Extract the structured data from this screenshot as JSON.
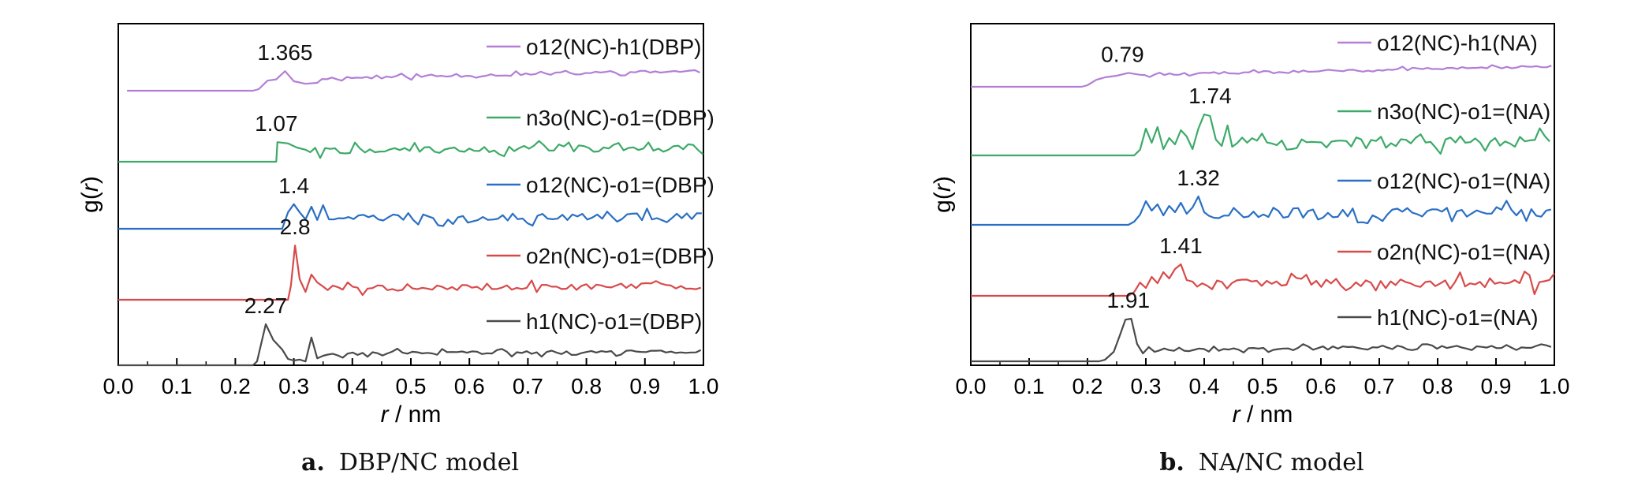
{
  "chart_data": [
    {
      "type": "line",
      "panel_letter": "a.",
      "caption": "DBP/NC model",
      "xlabel_italic": "r",
      "xlabel_unit": " / nm",
      "ylabel_prefix": "g(",
      "ylabel_italic": "r",
      "ylabel_suffix": ")",
      "xlim": [
        0.0,
        1.0
      ],
      "xticks": [
        "0.0",
        "0.1",
        "0.2",
        "0.3",
        "0.4",
        "0.5",
        "0.6",
        "0.7",
        "0.8",
        "0.9",
        "1.0"
      ],
      "y_ticks_shown": false,
      "series": [
        {
          "name": "o12(NC)-h1(DBP)",
          "color": "#b37fd6",
          "peak_label": "1.365",
          "peak_r": 0.285,
          "onset": 0.23,
          "x_start": 0.015,
          "noise": 0.045,
          "trend": 0.14,
          "seed": 11,
          "points": [
            [
              0.24,
              0.05
            ],
            [
              0.255,
              0.32
            ],
            [
              0.27,
              0.36
            ],
            [
              0.285,
              0.62
            ],
            [
              0.3,
              0.3
            ],
            [
              0.32,
              0.22
            ],
            [
              0.34,
              0.25
            ]
          ]
        },
        {
          "name": "n3o(NC)-o1=(DBP)",
          "color": "#3caa68",
          "peak_label": "1.07",
          "peak_r": 0.27,
          "onset": 0.27,
          "x_start": 0.0,
          "noise": 0.11,
          "trend": 0.05,
          "seed": 22,
          "points": [
            [
              0.272,
              0.62
            ],
            [
              0.29,
              0.58
            ],
            [
              0.305,
              0.45
            ],
            [
              0.32,
              0.38
            ]
          ]
        },
        {
          "name": "o12(NC)-o1=(DBP)",
          "color": "#2a6fc4",
          "peak_label": "1.4",
          "peak_r": 0.3,
          "onset": 0.28,
          "x_start": 0.0,
          "noise": 0.12,
          "trend": 0.02,
          "seed": 33,
          "points": [
            [
              0.29,
              0.52
            ],
            [
              0.3,
              0.78
            ],
            [
              0.31,
              0.52
            ],
            [
              0.32,
              0.3
            ],
            [
              0.33,
              0.7
            ],
            [
              0.34,
              0.28
            ],
            [
              0.35,
              0.75
            ],
            [
              0.36,
              0.3
            ]
          ]
        },
        {
          "name": "o2n(NC)-o1=(DBP)",
          "color": "#d84a4a",
          "peak_label": "2.8",
          "peak_r": 0.302,
          "onset": 0.29,
          "x_start": 0.0,
          "noise": 0.1,
          "trend": 0.04,
          "seed": 44,
          "points": [
            [
              0.295,
              0.45
            ],
            [
              0.302,
              1.72
            ],
            [
              0.31,
              0.65
            ],
            [
              0.32,
              0.25
            ],
            [
              0.33,
              0.8
            ],
            [
              0.34,
              0.55
            ],
            [
              0.35,
              0.42
            ]
          ]
        },
        {
          "name": "h1(NC)-o1=(DBP)",
          "color": "#4a4a4a",
          "peak_label": "2.27",
          "peak_r": 0.252,
          "onset": 0.23,
          "x_start": 0.0,
          "noise": 0.06,
          "trend": 0.05,
          "seed": 55,
          "points": [
            [
              0.237,
              0.12
            ],
            [
              0.252,
              1.3
            ],
            [
              0.265,
              0.8
            ],
            [
              0.28,
              0.5
            ],
            [
              0.29,
              0.2
            ],
            [
              0.3,
              0.15
            ],
            [
              0.31,
              0.18
            ],
            [
              0.32,
              0.12
            ],
            [
              0.33,
              0.88
            ],
            [
              0.34,
              0.22
            ],
            [
              0.35,
              0.3
            ]
          ]
        }
      ]
    },
    {
      "type": "line",
      "panel_letter": "b.",
      "caption": "NA/NC model",
      "xlabel_italic": "r",
      "xlabel_unit": " / nm",
      "ylabel_prefix": "g(",
      "ylabel_italic": "r",
      "ylabel_suffix": ")",
      "xlim": [
        0.0,
        1.0
      ],
      "xticks": [
        "0.0",
        "0.1",
        "0.2",
        "0.3",
        "0.4",
        "0.5",
        "0.6",
        "0.7",
        "0.8",
        "0.9",
        "1.0"
      ],
      "y_ticks_shown": false,
      "series": [
        {
          "name": "o12(NC)-h1(NA)",
          "color": "#b37fd6",
          "peak_label": "0.79",
          "peak_r": 0.26,
          "onset": 0.19,
          "x_start": 0.0,
          "noise": 0.035,
          "trend": 0.15,
          "seed": 66,
          "points": [
            [
              0.2,
              0.05
            ],
            [
              0.215,
              0.22
            ],
            [
              0.23,
              0.3
            ],
            [
              0.25,
              0.35
            ],
            [
              0.27,
              0.44
            ],
            [
              0.29,
              0.38
            ]
          ]
        },
        {
          "name": "n3o(NC)-o1=(NA)",
          "color": "#3caa68",
          "peak_label": "1.74",
          "peak_r": 0.41,
          "onset": 0.28,
          "x_start": 0.0,
          "noise": 0.2,
          "trend": 0.04,
          "seed": 77,
          "points": [
            [
              0.29,
              0.18
            ],
            [
              0.3,
              0.85
            ],
            [
              0.31,
              0.4
            ],
            [
              0.32,
              0.9
            ],
            [
              0.33,
              0.2
            ],
            [
              0.34,
              0.55
            ],
            [
              0.35,
              0.35
            ],
            [
              0.36,
              0.8
            ],
            [
              0.37,
              0.6
            ],
            [
              0.38,
              0.2
            ],
            [
              0.39,
              0.85
            ],
            [
              0.4,
              1.3
            ],
            [
              0.41,
              1.25
            ],
            [
              0.42,
              0.5
            ],
            [
              0.43,
              0.3
            ],
            [
              0.44,
              0.95
            ]
          ]
        },
        {
          "name": "o12(NC)-o1=(NA)",
          "color": "#2a6fc4",
          "peak_label": "1.32",
          "peak_r": 0.39,
          "onset": 0.27,
          "x_start": 0.0,
          "noise": 0.16,
          "trend": 0.03,
          "seed": 88,
          "points": [
            [
              0.28,
              0.1
            ],
            [
              0.29,
              0.32
            ],
            [
              0.3,
              0.75
            ],
            [
              0.31,
              0.45
            ],
            [
              0.32,
              0.65
            ],
            [
              0.33,
              0.3
            ],
            [
              0.34,
              0.6
            ],
            [
              0.35,
              0.4
            ],
            [
              0.36,
              0.7
            ],
            [
              0.37,
              0.35
            ],
            [
              0.38,
              0.55
            ],
            [
              0.39,
              0.9
            ],
            [
              0.4,
              0.4
            ]
          ]
        },
        {
          "name": "o2n(NC)-o1=(NA)",
          "color": "#d84a4a",
          "peak_label": "1.41",
          "peak_r": 0.36,
          "onset": 0.27,
          "x_start": 0.0,
          "noise": 0.16,
          "trend": 0.04,
          "seed": 99,
          "points": [
            [
              0.28,
              0.12
            ],
            [
              0.29,
              0.42
            ],
            [
              0.3,
              0.25
            ],
            [
              0.31,
              0.6
            ],
            [
              0.32,
              0.4
            ],
            [
              0.33,
              0.75
            ],
            [
              0.34,
              0.55
            ],
            [
              0.35,
              0.85
            ],
            [
              0.36,
              1.0
            ],
            [
              0.37,
              0.5
            ],
            [
              0.38,
              0.45
            ]
          ]
        },
        {
          "name": "h1(NC)-o1=(NA)",
          "color": "#4a4a4a",
          "peak_label": "1.91",
          "peak_r": 0.27,
          "onset": 0.22,
          "x_start": 0.0,
          "noise": 0.06,
          "trend": 0.07,
          "seed": 111,
          "points": [
            [
              0.23,
              0.05
            ],
            [
              0.245,
              0.3
            ],
            [
              0.255,
              0.8
            ],
            [
              0.265,
              1.32
            ],
            [
              0.275,
              1.35
            ],
            [
              0.285,
              0.55
            ],
            [
              0.295,
              0.25
            ],
            [
              0.305,
              0.45
            ],
            [
              0.315,
              0.3
            ]
          ]
        }
      ]
    }
  ]
}
